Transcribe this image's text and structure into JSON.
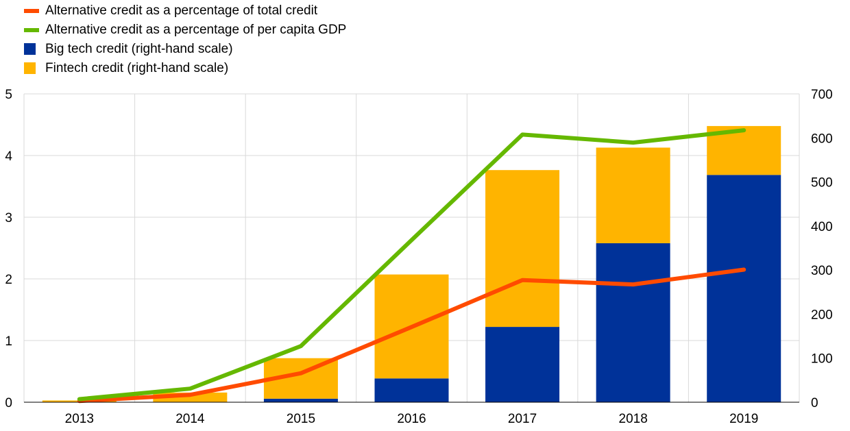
{
  "colors": {
    "total_credit_line": "#ff4b00",
    "gdp_line": "#65b800",
    "bigtech": "#003299",
    "fintech": "#ffb400",
    "grid": "#d9d9d9"
  },
  "legend": [
    {
      "label": "Alternative credit as a percentage of total credit",
      "kind": "line",
      "color": "#ff4b00"
    },
    {
      "label": "Alternative credit as a percentage of per capita GDP",
      "kind": "line",
      "color": "#65b800"
    },
    {
      "label": "Big tech credit (right-hand scale)",
      "kind": "box",
      "color": "#003299"
    },
    {
      "label": "Fintech credit (right-hand scale)",
      "kind": "box",
      "color": "#ffb400"
    }
  ],
  "chart_data": {
    "type": "bar",
    "categories": [
      "2013",
      "2014",
      "2015",
      "2016",
      "2017",
      "2018",
      "2019"
    ],
    "left_axis": {
      "ylim": [
        0,
        5
      ],
      "ticks": [
        "0",
        "1",
        "2",
        "3",
        "4",
        "5"
      ]
    },
    "right_axis": {
      "ylim": [
        0,
        700
      ],
      "ticks": [
        "0",
        "100",
        "200",
        "300",
        "400",
        "500",
        "600",
        "700"
      ]
    },
    "bar_series": [
      {
        "name": "Big tech credit (right-hand scale)",
        "axis": "right",
        "values": [
          0,
          0,
          8,
          54,
          171,
          361,
          516
        ]
      },
      {
        "name": "Fintech credit (right-hand scale)",
        "axis": "right",
        "values": [
          4,
          22,
          92,
          236,
          356,
          217,
          111
        ]
      }
    ],
    "line_series": [
      {
        "name": "Alternative credit as a percentage of total credit",
        "axis": "left",
        "values": [
          0.02,
          0.12,
          0.47,
          1.22,
          1.98,
          1.91,
          2.15
        ]
      },
      {
        "name": "Alternative credit as a percentage of per capita GDP",
        "axis": "left",
        "values": [
          0.05,
          0.22,
          0.91,
          2.63,
          4.34,
          4.21,
          4.41
        ]
      }
    ],
    "grid": true,
    "legend_position": "top-left"
  }
}
